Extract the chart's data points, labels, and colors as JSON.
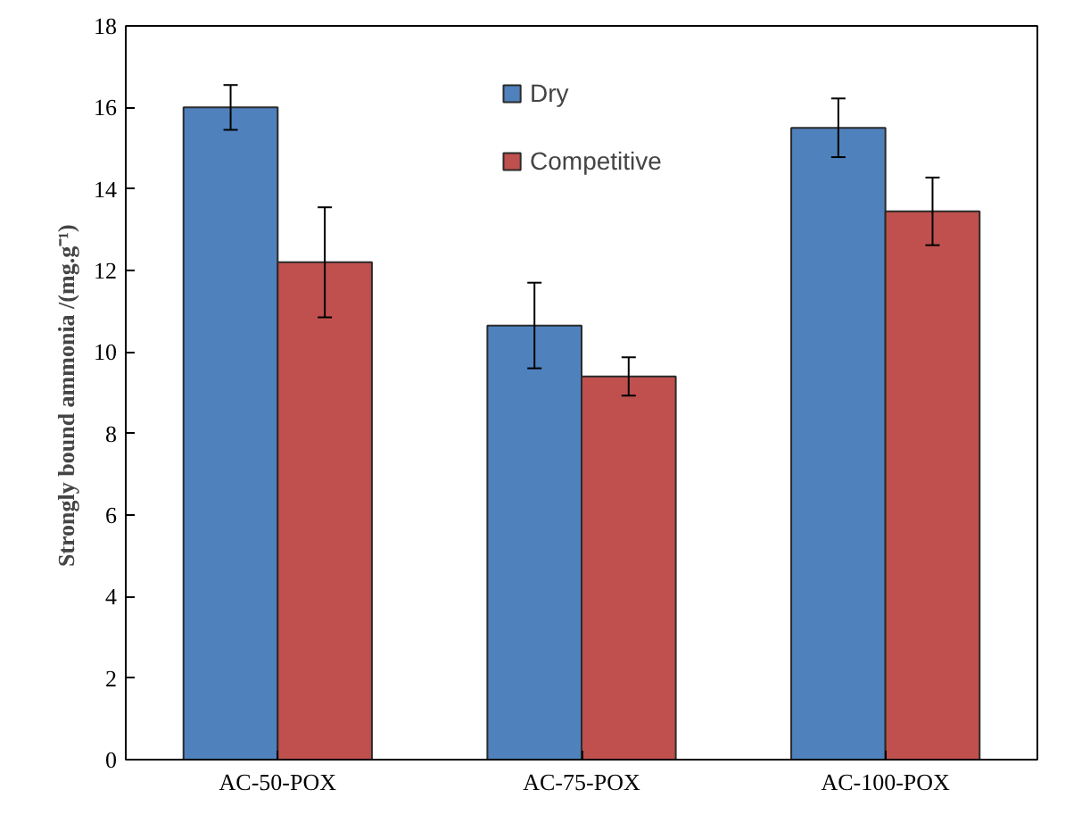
{
  "chart_data": {
    "type": "bar",
    "ylabel": "Strongly bound ammonia  /(mg.g⁻¹)",
    "categories": [
      "AC-50-POX",
      "AC-75-POX",
      "AC-100-POX"
    ],
    "series": [
      {
        "name": "Dry",
        "color": "#4f81bd",
        "values": [
          16.0,
          10.65,
          15.5
        ],
        "errors": [
          0.55,
          1.05,
          0.72
        ]
      },
      {
        "name": "Competitive",
        "color": "#c0504d",
        "values": [
          12.2,
          9.4,
          13.45
        ],
        "errors": [
          1.35,
          0.47,
          0.83
        ]
      }
    ],
    "ylim": [
      0,
      18
    ],
    "yticks": [
      0,
      2,
      4,
      6,
      8,
      10,
      12,
      14,
      16,
      18
    ],
    "grid": false,
    "legend": "top"
  }
}
